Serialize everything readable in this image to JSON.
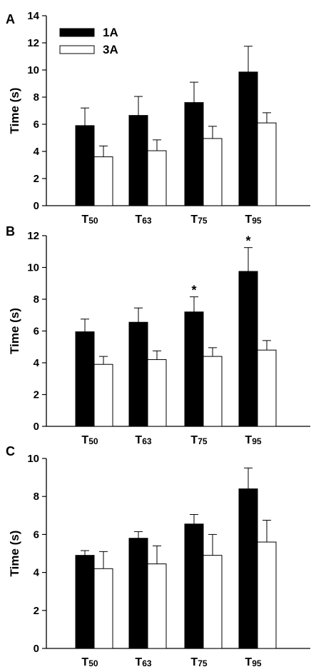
{
  "chart_data": [
    {
      "type": "bar",
      "panel": "A",
      "ylabel": "Time (s)",
      "ylim": [
        0,
        14
      ],
      "yticks": [
        0,
        2,
        4,
        6,
        8,
        10,
        12,
        14
      ],
      "categories": [
        {
          "main": "T",
          "sub": "50"
        },
        {
          "main": "T",
          "sub": "63"
        },
        {
          "main": "T",
          "sub": "75"
        },
        {
          "main": "T",
          "sub": "95"
        }
      ],
      "legend": {
        "placement": "top-left",
        "show": true
      },
      "series": [
        {
          "name": "1A",
          "color": "#000000",
          "values": [
            5.9,
            6.65,
            7.6,
            9.85
          ],
          "errors": [
            1.3,
            1.4,
            1.5,
            1.9
          ],
          "significance": [
            "",
            "",
            "",
            ""
          ]
        },
        {
          "name": "3A",
          "color": "#ffffff",
          "values": [
            3.6,
            4.05,
            4.95,
            6.1
          ],
          "errors": [
            0.8,
            0.8,
            0.9,
            0.75
          ],
          "significance": [
            "",
            "",
            "",
            ""
          ]
        }
      ]
    },
    {
      "type": "bar",
      "panel": "B",
      "ylabel": "Time (s)",
      "ylim": [
        0,
        12
      ],
      "yticks": [
        0,
        2,
        4,
        6,
        8,
        10,
        12
      ],
      "categories": [
        {
          "main": "T",
          "sub": "50"
        },
        {
          "main": "T",
          "sub": "63"
        },
        {
          "main": "T",
          "sub": "75"
        },
        {
          "main": "T",
          "sub": "95"
        }
      ],
      "legend": {
        "placement": "none",
        "show": false
      },
      "series": [
        {
          "name": "1A",
          "color": "#000000",
          "values": [
            5.95,
            6.55,
            7.2,
            9.75
          ],
          "errors": [
            0.8,
            0.9,
            0.95,
            1.5
          ],
          "significance": [
            "",
            "",
            "*",
            "*"
          ]
        },
        {
          "name": "3A",
          "color": "#ffffff",
          "values": [
            3.9,
            4.2,
            4.4,
            4.8
          ],
          "errors": [
            0.5,
            0.55,
            0.55,
            0.6
          ],
          "significance": [
            "",
            "",
            "",
            ""
          ]
        }
      ]
    },
    {
      "type": "bar",
      "panel": "C",
      "ylabel": "Time (s)",
      "ylim": [
        0,
        10
      ],
      "yticks": [
        0,
        2,
        4,
        6,
        8,
        10
      ],
      "categories": [
        {
          "main": "T",
          "sub": "50"
        },
        {
          "main": "T",
          "sub": "63"
        },
        {
          "main": "T",
          "sub": "75"
        },
        {
          "main": "T",
          "sub": "95"
        }
      ],
      "legend": {
        "placement": "none",
        "show": false
      },
      "series": [
        {
          "name": "1A",
          "color": "#000000",
          "values": [
            4.9,
            5.8,
            6.55,
            8.4
          ],
          "errors": [
            0.25,
            0.35,
            0.5,
            1.1
          ],
          "significance": [
            "",
            "",
            "",
            ""
          ]
        },
        {
          "name": "3A",
          "color": "#ffffff",
          "values": [
            4.2,
            4.45,
            4.9,
            5.6
          ],
          "errors": [
            0.9,
            0.95,
            1.1,
            1.15
          ],
          "significance": [
            "",
            "",
            "",
            ""
          ]
        }
      ]
    }
  ]
}
